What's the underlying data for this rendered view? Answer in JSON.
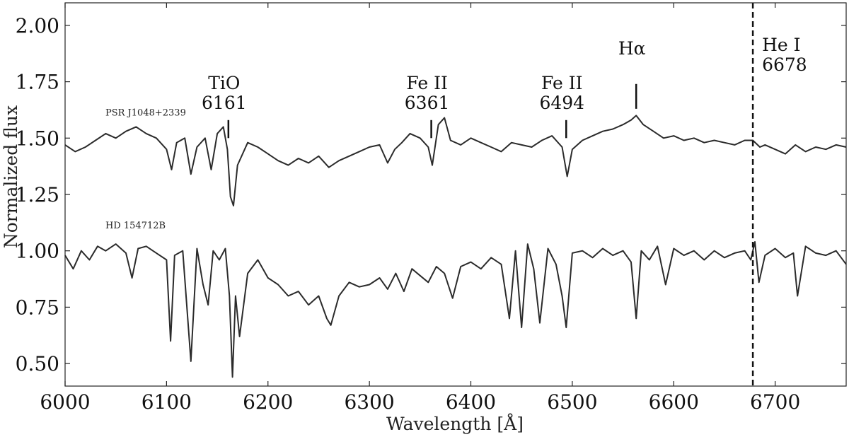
{
  "chart_data": {
    "type": "line",
    "xlabel": "Wavelength [Å]",
    "ylabel": "Normalized flux",
    "xlim": [
      6000,
      6770
    ],
    "ylim": [
      0.4,
      2.1
    ],
    "xticks": [
      6000,
      6100,
      6200,
      6300,
      6400,
      6500,
      6600,
      6700
    ],
    "yticks": [
      0.5,
      0.75,
      1.0,
      1.25,
      1.5,
      1.75,
      2.0
    ],
    "grid": false,
    "series": [
      {
        "name": "PSR J1048+2339",
        "label_pos": [
          6030,
          1.6
        ],
        "color": "#2b2b2b",
        "x": [
          6000,
          6010,
          6020,
          6030,
          6040,
          6050,
          6060,
          6070,
          6080,
          6090,
          6100,
          6105,
          6110,
          6118,
          6124,
          6130,
          6138,
          6144,
          6150,
          6156,
          6160,
          6163,
          6166,
          6170,
          6180,
          6190,
          6200,
          6210,
          6220,
          6230,
          6240,
          6250,
          6260,
          6270,
          6280,
          6290,
          6300,
          6310,
          6318,
          6325,
          6332,
          6340,
          6350,
          6358,
          6362,
          6368,
          6374,
          6380,
          6390,
          6400,
          6410,
          6420,
          6430,
          6440,
          6450,
          6460,
          6470,
          6480,
          6490,
          6495,
          6500,
          6510,
          6520,
          6530,
          6540,
          6550,
          6558,
          6563,
          6570,
          6580,
          6590,
          6600,
          6610,
          6620,
          6630,
          6640,
          6650,
          6660,
          6670,
          6678,
          6685,
          6690,
          6700,
          6710,
          6720,
          6730,
          6740,
          6750,
          6760,
          6770
        ],
        "y": [
          1.47,
          1.44,
          1.46,
          1.49,
          1.52,
          1.5,
          1.53,
          1.55,
          1.52,
          1.5,
          1.45,
          1.36,
          1.48,
          1.5,
          1.34,
          1.46,
          1.5,
          1.36,
          1.52,
          1.55,
          1.45,
          1.24,
          1.2,
          1.38,
          1.48,
          1.46,
          1.43,
          1.4,
          1.38,
          1.41,
          1.39,
          1.42,
          1.37,
          1.4,
          1.42,
          1.44,
          1.46,
          1.47,
          1.39,
          1.45,
          1.48,
          1.52,
          1.5,
          1.46,
          1.38,
          1.56,
          1.59,
          1.49,
          1.47,
          1.5,
          1.48,
          1.46,
          1.44,
          1.48,
          1.47,
          1.46,
          1.49,
          1.51,
          1.46,
          1.33,
          1.45,
          1.49,
          1.51,
          1.53,
          1.54,
          1.56,
          1.58,
          1.6,
          1.56,
          1.53,
          1.5,
          1.51,
          1.49,
          1.5,
          1.48,
          1.49,
          1.48,
          1.47,
          1.49,
          1.49,
          1.46,
          1.47,
          1.45,
          1.43,
          1.47,
          1.44,
          1.46,
          1.45,
          1.47,
          1.46
        ]
      },
      {
        "name": "HD 154712B",
        "label_pos": [
          6030,
          1.1
        ],
        "color": "#2b2b2b",
        "x": [
          6000,
          6008,
          6016,
          6024,
          6032,
          6040,
          6050,
          6060,
          6066,
          6072,
          6080,
          6090,
          6100,
          6104,
          6108,
          6116,
          6124,
          6130,
          6136,
          6141,
          6146,
          6152,
          6158,
          6162,
          6165,
          6168,
          6172,
          6180,
          6190,
          6200,
          6210,
          6220,
          6230,
          6240,
          6250,
          6258,
          6262,
          6270,
          6280,
          6290,
          6300,
          6310,
          6318,
          6326,
          6334,
          6342,
          6350,
          6358,
          6366,
          6374,
          6382,
          6390,
          6400,
          6410,
          6420,
          6430,
          6438,
          6444,
          6450,
          6456,
          6462,
          6468,
          6476,
          6484,
          6490,
          6494,
          6500,
          6510,
          6520,
          6530,
          6540,
          6550,
          6558,
          6563,
          6568,
          6576,
          6584,
          6592,
          6600,
          6610,
          6620,
          6630,
          6640,
          6650,
          6660,
          6670,
          6676,
          6680,
          6684,
          6690,
          6700,
          6710,
          6718,
          6722,
          6730,
          6740,
          6750,
          6760,
          6770
        ],
        "y": [
          0.98,
          0.92,
          1.0,
          0.96,
          1.02,
          1.0,
          1.03,
          0.99,
          0.88,
          1.01,
          1.02,
          0.99,
          0.96,
          0.6,
          0.98,
          1.0,
          0.51,
          1.01,
          0.85,
          0.76,
          1.0,
          0.96,
          1.01,
          0.8,
          0.44,
          0.8,
          0.62,
          0.9,
          0.96,
          0.88,
          0.85,
          0.8,
          0.82,
          0.76,
          0.8,
          0.7,
          0.67,
          0.8,
          0.86,
          0.84,
          0.85,
          0.88,
          0.83,
          0.9,
          0.82,
          0.92,
          0.89,
          0.86,
          0.93,
          0.9,
          0.79,
          0.93,
          0.95,
          0.92,
          0.97,
          0.94,
          0.7,
          1.0,
          0.66,
          1.03,
          0.92,
          0.68,
          1.01,
          0.94,
          0.8,
          0.66,
          0.99,
          1.0,
          0.97,
          1.01,
          0.98,
          1.0,
          0.95,
          0.7,
          1.0,
          0.96,
          1.02,
          0.85,
          1.01,
          0.98,
          1.0,
          0.96,
          1.0,
          0.97,
          0.99,
          1.0,
          0.96,
          1.04,
          0.86,
          0.98,
          1.01,
          0.97,
          0.99,
          0.8,
          1.02,
          0.99,
          0.98,
          1.0,
          0.94
        ]
      }
    ],
    "annotations": [
      {
        "line1": "TiO",
        "line2": "6161",
        "x": 6161,
        "tick_from": 1.5,
        "tick_to": 1.58
      },
      {
        "line1": "Fe II",
        "line2": "6361",
        "x": 6361,
        "tick_from": 1.5,
        "tick_to": 1.58
      },
      {
        "line1": "Fe II",
        "line2": "6494",
        "x": 6494,
        "tick_from": 1.5,
        "tick_to": 1.58
      },
      {
        "line1": "Hα",
        "line2": "",
        "x": 6563,
        "tick_from": 1.63,
        "tick_to": 1.74
      }
    ],
    "vline": {
      "x": 6678,
      "style": "dashed",
      "label1": "He I",
      "label2": "6678"
    }
  }
}
